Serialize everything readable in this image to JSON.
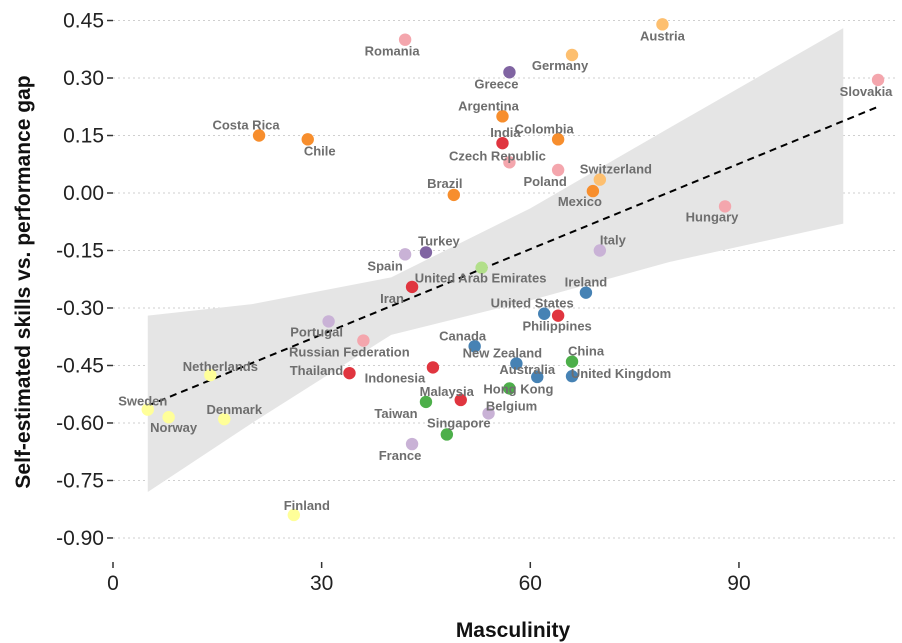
{
  "chart_data": {
    "type": "scatter",
    "xlabel": "Masculinity",
    "ylabel": "Self-estimated skills vs. performance gap",
    "xlim": [
      0,
      110
    ],
    "ylim": [
      -0.95,
      0.47
    ],
    "xticks": [
      0,
      30,
      60,
      90
    ],
    "yticks": [
      0.45,
      0.3,
      0.15,
      0.0,
      -0.15,
      -0.3,
      -0.45,
      -0.6,
      -0.75,
      -0.9
    ],
    "grid": "horizontal dotted",
    "trend_line": {
      "x": [
        5,
        110
      ],
      "y": [
        -0.555,
        0.225
      ],
      "style": "dashed",
      "color": "#000000"
    },
    "confidence_band": {
      "x": [
        5,
        20,
        40,
        60,
        80,
        105
      ],
      "upper": [
        -0.32,
        -0.29,
        -0.22,
        -0.04,
        0.17,
        0.43
      ],
      "lower": [
        -0.78,
        -0.6,
        -0.37,
        -0.28,
        -0.18,
        -0.08
      ],
      "color": "#e5e5e5"
    },
    "points": [
      {
        "name": "Austria",
        "x": 79,
        "y": 0.44,
        "color": "#fdbf6f"
      },
      {
        "name": "Romania",
        "x": 42,
        "y": 0.4,
        "color": "#f4a6ad"
      },
      {
        "name": "Germany",
        "x": 66,
        "y": 0.36,
        "color": "#fdbf6f"
      },
      {
        "name": "Greece",
        "x": 57,
        "y": 0.315,
        "color": "#8064a2"
      },
      {
        "name": "Slovakia",
        "x": 110,
        "y": 0.295,
        "color": "#f4a6ad"
      },
      {
        "name": "Argentina",
        "x": 56,
        "y": 0.2,
        "color": "#f78e2d"
      },
      {
        "name": "Costa Rica",
        "x": 21,
        "y": 0.15,
        "color": "#f78e2d"
      },
      {
        "name": "Colombia",
        "x": 64,
        "y": 0.14,
        "color": "#f78e2d"
      },
      {
        "name": "Chile",
        "x": 28,
        "y": 0.14,
        "color": "#f78e2d"
      },
      {
        "name": "India",
        "x": 56,
        "y": 0.13,
        "color": "#e0353f"
      },
      {
        "name": "Czech Republic",
        "x": 57,
        "y": 0.08,
        "color": "#f4a6ad"
      },
      {
        "name": "Poland",
        "x": 64,
        "y": 0.06,
        "color": "#f4a6ad"
      },
      {
        "name": "Switzerland",
        "x": 70,
        "y": 0.035,
        "color": "#fdbf6f"
      },
      {
        "name": "Mexico",
        "x": 69,
        "y": 0.005,
        "color": "#f78e2d"
      },
      {
        "name": "Brazil",
        "x": 49,
        "y": -0.005,
        "color": "#f78e2d"
      },
      {
        "name": "Hungary",
        "x": 88,
        "y": -0.035,
        "color": "#f4a6ad"
      },
      {
        "name": "Italy",
        "x": 70,
        "y": -0.15,
        "color": "#c9b2d6"
      },
      {
        "name": "Turkey",
        "x": 45,
        "y": -0.155,
        "color": "#8064a2"
      },
      {
        "name": "Spain",
        "x": 42,
        "y": -0.16,
        "color": "#c9b2d6"
      },
      {
        "name": "United Arab Emirates",
        "x": 53,
        "y": -0.195,
        "color": "#b2df8a"
      },
      {
        "name": "Iran",
        "x": 43,
        "y": -0.245,
        "color": "#e0353f"
      },
      {
        "name": "Ireland",
        "x": 68,
        "y": -0.26,
        "color": "#4682b4"
      },
      {
        "name": "United States",
        "x": 62,
        "y": -0.315,
        "color": "#4682b4"
      },
      {
        "name": "Philippines",
        "x": 64,
        "y": -0.32,
        "color": "#e0353f"
      },
      {
        "name": "Portugal",
        "x": 31,
        "y": -0.335,
        "color": "#c9b2d6"
      },
      {
        "name": "Russian Federation",
        "x": 36,
        "y": -0.385,
        "color": "#f4a6ad"
      },
      {
        "name": "Canada",
        "x": 52,
        "y": -0.4,
        "color": "#4682b4"
      },
      {
        "name": "New Zealand",
        "x": 58,
        "y": -0.445,
        "color": "#4682b4"
      },
      {
        "name": "China",
        "x": 66,
        "y": -0.44,
        "color": "#4daf4a"
      },
      {
        "name": "Indonesia",
        "x": 46,
        "y": -0.455,
        "color": "#e0353f"
      },
      {
        "name": "Thailand",
        "x": 34,
        "y": -0.47,
        "color": "#e0353f"
      },
      {
        "name": "Netherlands",
        "x": 14,
        "y": -0.475,
        "color": "#ffff99"
      },
      {
        "name": "Australia",
        "x": 61,
        "y": -0.48,
        "color": "#4682b4"
      },
      {
        "name": "United Kingdom",
        "x": 66,
        "y": -0.478,
        "color": "#4682b4"
      },
      {
        "name": "Hong Kong",
        "x": 57,
        "y": -0.51,
        "color": "#4daf4a"
      },
      {
        "name": "Malaysia",
        "x": 50,
        "y": -0.54,
        "color": "#e0353f"
      },
      {
        "name": "Taiwan",
        "x": 45,
        "y": -0.545,
        "color": "#4daf4a"
      },
      {
        "name": "Sweden",
        "x": 5,
        "y": -0.565,
        "color": "#ffff99"
      },
      {
        "name": "Belgium",
        "x": 54,
        "y": -0.575,
        "color": "#c9b2d6"
      },
      {
        "name": "Norway",
        "x": 8,
        "y": -0.585,
        "color": "#ffff99"
      },
      {
        "name": "Denmark",
        "x": 16,
        "y": -0.59,
        "color": "#ffff99"
      },
      {
        "name": "Singapore",
        "x": 48,
        "y": -0.63,
        "color": "#4daf4a"
      },
      {
        "name": "France",
        "x": 43,
        "y": -0.655,
        "color": "#c9b2d6"
      },
      {
        "name": "Finland",
        "x": 26,
        "y": -0.84,
        "color": "#ffff99"
      }
    ]
  }
}
